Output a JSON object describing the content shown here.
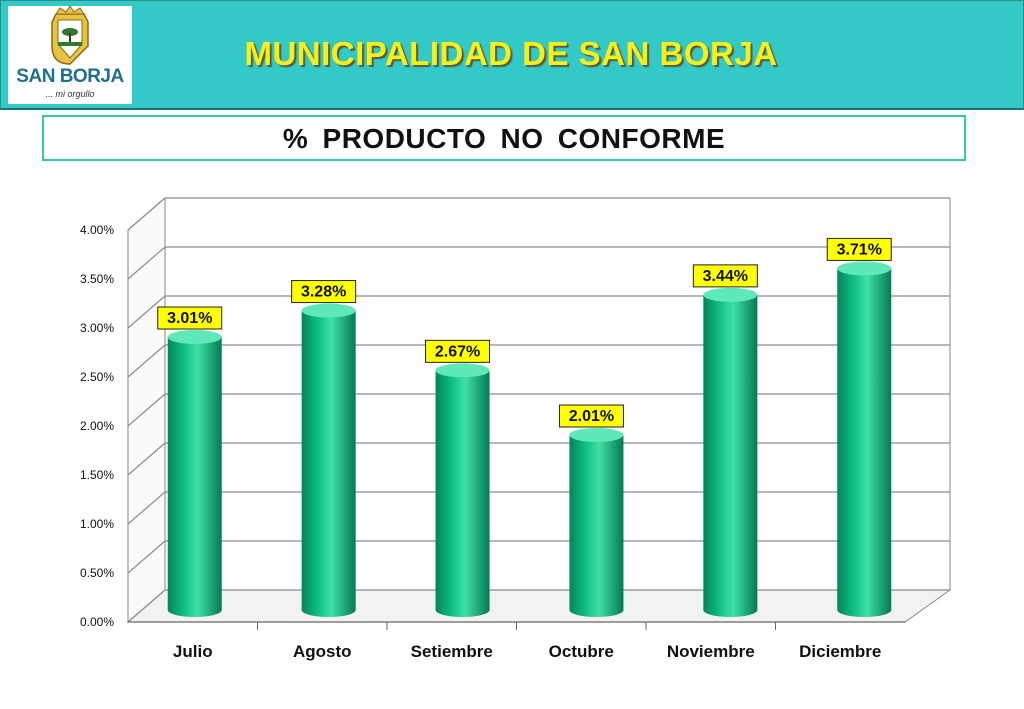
{
  "header": {
    "logo_text": "SAN BORJA",
    "logo_sub": "... mi orgullo",
    "title": "MUNICIPALIDAD DE SAN BORJA",
    "colors": {
      "band": "#33c9c6",
      "title": "#f5ef1b"
    }
  },
  "subtitle": "% PRODUCTO NO CONFORME",
  "chart_data": {
    "type": "bar",
    "categories": [
      "Julio",
      "Agosto",
      "Setiembre",
      "Octubre",
      "Noviembre",
      "Diciembre"
    ],
    "values": [
      3.01,
      3.28,
      2.67,
      2.01,
      3.44,
      3.71
    ],
    "value_labels": [
      "3.01%",
      "3.28%",
      "2.67%",
      "2.01%",
      "3.44%",
      "3.71%"
    ],
    "y_ticks": [
      "0.00%",
      "0.50%",
      "1.00%",
      "1.50%",
      "2.00%",
      "2.50%",
      "3.00%",
      "3.50%",
      "4.00%"
    ],
    "ylim": [
      0,
      4
    ],
    "grid": true,
    "bar_color": "#0fbf85",
    "label_bg": "#ffff00"
  }
}
